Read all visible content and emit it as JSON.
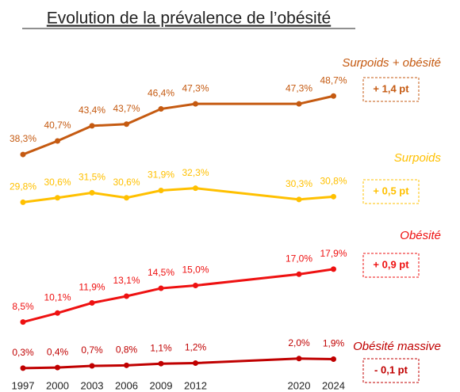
{
  "chart_data": {
    "type": "line",
    "title": "Evolution de la prévalence de l’obésité",
    "categories": [
      "1997",
      "2000",
      "2003",
      "2006",
      "2009",
      "2012",
      "2020",
      "2024"
    ],
    "series": [
      {
        "name": "Surpoids + obésité",
        "color": "#c55a11",
        "change": "+ 1,4 pt",
        "values": [
          38.3,
          40.7,
          43.4,
          43.7,
          46.4,
          47.3,
          47.3,
          48.7
        ],
        "value_labels": [
          "38,3%",
          "40,7%",
          "43,4%",
          "43,7%",
          "46,4%",
          "47,3%",
          "47,3%",
          "48,7%"
        ]
      },
      {
        "name": "Surpoids",
        "color": "#ffc000",
        "change": "+ 0,5 pt",
        "values": [
          29.8,
          30.6,
          31.5,
          30.6,
          31.9,
          32.3,
          30.3,
          30.8
        ],
        "value_labels": [
          "29,8%",
          "30,6%",
          "31,5%",
          "30,6%",
          "31,9%",
          "32,3%",
          "30,3%",
          "30,8%"
        ]
      },
      {
        "name": "Obésité",
        "color": "#ee1111",
        "change": "+ 0,9 pt",
        "values": [
          8.5,
          10.1,
          11.9,
          13.1,
          14.5,
          15.0,
          17.0,
          17.9
        ],
        "value_labels": [
          "8,5%",
          "10,1%",
          "11,9%",
          "13,1%",
          "14,5%",
          "15,0%",
          "17,0%",
          "17,9%"
        ]
      },
      {
        "name": "Obésité massive",
        "color": "#c00000",
        "change": "- 0,1 pt",
        "values": [
          0.3,
          0.4,
          0.7,
          0.8,
          1.1,
          1.2,
          2.0,
          1.9
        ],
        "value_labels": [
          "0,3%",
          "0,4%",
          "0,7%",
          "0,8%",
          "1,1%",
          "1,2%",
          "2,0%",
          "1,9%"
        ]
      }
    ]
  }
}
